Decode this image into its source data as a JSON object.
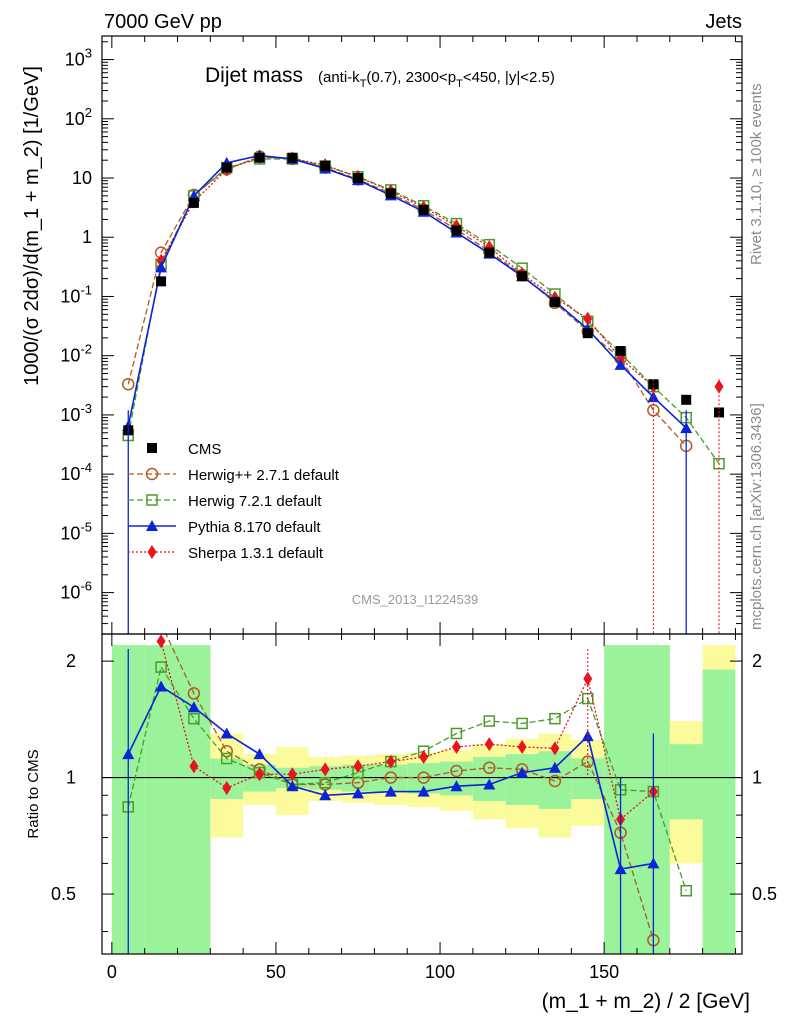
{
  "header": {
    "left": "7000 GeV pp",
    "right": "Jets",
    "side_top": "Rivet 3.1.10, ≥ 100k events",
    "side_bottom": "mcplots.cern.ch [arXiv:1306.3436]"
  },
  "chart_data": {
    "type": "line",
    "title": "Dijet mass",
    "subtitle": "(anti-kT(0.7), 2300<pT<450, |y|<2.5)",
    "watermark": "CMS_2013_I1224539",
    "xlabel": "(m_1 + m_2) / 2 [GeV]",
    "ylabel": "1000/(σ 2dσ)/d(m_1 + m_2) [1/GeV]",
    "ratio_ylabel": "Ratio to CMS",
    "xlim": [
      -3,
      192
    ],
    "ylim": [
      2e-07,
      2500
    ],
    "y_scale": "log",
    "ratio_ylim": [
      0.35,
      2.35
    ],
    "x_ticks": [
      "0",
      "50",
      "100",
      "150"
    ],
    "y_ticks": [
      "10^-6",
      "10^-5",
      "10^-4",
      "10^-3",
      "10^-2",
      "10^-1",
      "1",
      "10",
      "10^2",
      "10^3"
    ],
    "ratio_ticks": [
      "0.5",
      "1",
      "2"
    ],
    "x": [
      5,
      15,
      25,
      35,
      45,
      55,
      65,
      75,
      85,
      95,
      105,
      115,
      125,
      135,
      145,
      155,
      165,
      175,
      185
    ],
    "series": [
      {
        "name": "CMS",
        "color": "#000000",
        "marker": "square-filled",
        "line": "none",
        "values": [
          0.00055,
          0.18,
          3.8,
          15,
          22,
          22,
          16,
          10,
          5.5,
          2.9,
          1.3,
          0.55,
          0.22,
          0.08,
          0.024,
          0.012,
          0.0033,
          0.0018,
          0.0011
        ]
      },
      {
        "name": "Herwig++ 2.7.1 default",
        "color": "#b35a1f",
        "marker": "circle-open",
        "line": "dashed",
        "values": [
          0.0033,
          0.55,
          5.2,
          14,
          23,
          21,
          15,
          9.5,
          5.5,
          2.9,
          1.35,
          0.58,
          0.23,
          0.078,
          0.026,
          0.009,
          0.0012,
          0.0003,
          null
        ]
      },
      {
        "name": "Herwig 7.2.1 default",
        "color": "#4c9a2a",
        "marker": "square-open",
        "line": "dashed",
        "values": [
          0.00045,
          0.35,
          5.0,
          15,
          21,
          21,
          16,
          10.5,
          6.3,
          3.4,
          1.7,
          0.75,
          0.3,
          0.11,
          0.038,
          0.011,
          0.003,
          0.0009,
          0.00015
        ]
      },
      {
        "name": "Pythia 8.170 default",
        "color": "#0b24d6",
        "marker": "triangle-filled",
        "line": "solid",
        "values": [
          0.00065,
          0.31,
          5.0,
          18,
          24,
          21,
          14.5,
          9.2,
          5.1,
          2.7,
          1.2,
          0.53,
          0.22,
          0.083,
          0.028,
          0.007,
          0.002,
          0.0006,
          null
        ]
      },
      {
        "name": "Sherpa 1.3.1 default",
        "color": "#e8141e",
        "marker": "diamond-filled",
        "line": "dotted",
        "values": [
          null,
          0.4,
          4.0,
          14,
          22.5,
          21.5,
          16.5,
          10.5,
          6.0,
          3.2,
          1.55,
          0.68,
          0.24,
          0.095,
          0.042,
          0.009,
          0.003,
          null,
          0.003
        ]
      }
    ],
    "ratio_series": [
      {
        "name": "Herwig++ 2.7.1 default",
        "values": [
          null,
          2.5,
          1.65,
          1.17,
          1.05,
          0.96,
          0.96,
          0.97,
          1.0,
          1.0,
          1.04,
          1.06,
          1.05,
          0.98,
          1.1,
          0.72,
          0.38,
          null,
          null
        ]
      },
      {
        "name": "Herwig 7.2.1 default",
        "values": [
          0.84,
          1.93,
          1.42,
          1.12,
          1.03,
          0.96,
          0.97,
          1.03,
          1.1,
          1.17,
          1.3,
          1.4,
          1.38,
          1.42,
          1.6,
          0.93,
          0.92,
          0.51,
          null
        ]
      },
      {
        "name": "Pythia 8.170 default",
        "values": [
          1.15,
          1.72,
          1.52,
          1.3,
          1.15,
          0.95,
          0.9,
          0.91,
          0.92,
          0.92,
          0.95,
          0.96,
          1.03,
          1.06,
          1.28,
          0.58,
          0.6,
          null,
          null
        ]
      },
      {
        "name": "Sherpa 1.3.1 default",
        "values": [
          null,
          2.25,
          1.07,
          0.94,
          1.02,
          1.02,
          1.05,
          1.07,
          1.1,
          1.13,
          1.2,
          1.22,
          1.2,
          1.19,
          1.8,
          0.78,
          0.92,
          null,
          null
        ]
      }
    ],
    "uncertainty_bands": {
      "green_halfwidth": [
        1.2,
        1.2,
        1.2,
        0.12,
        0.08,
        0.06,
        0.07,
        0.08,
        0.08,
        0.09,
        0.1,
        0.13,
        0.15,
        0.17,
        0.12,
        1.2,
        1.2,
        0.22,
        0.9
      ],
      "yellow_halfwidth": [
        1.2,
        0.85,
        1.2,
        0.3,
        0.15,
        0.2,
        0.13,
        0.14,
        0.15,
        0.16,
        0.18,
        0.22,
        0.26,
        0.3,
        0.25,
        1.2,
        1.2,
        0.4,
        1.2
      ]
    }
  }
}
